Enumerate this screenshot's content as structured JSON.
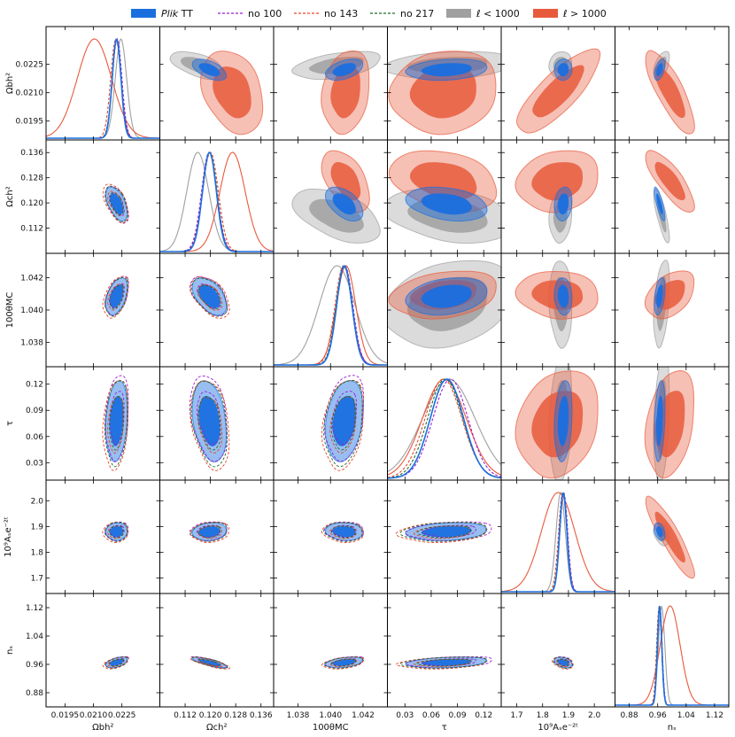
{
  "chart_data": {
    "type": "triangle-corner-plot",
    "legend": {
      "placement": "top",
      "entries": [
        {
          "key": "plik",
          "label_prefix": "Plik",
          "label_suffix": " TT",
          "style": "filled",
          "color": "#1a6fdf"
        },
        {
          "key": "no100",
          "label": "no 100",
          "style": "dashed",
          "color": "#9a1fd6"
        },
        {
          "key": "no143",
          "label": "no 143",
          "style": "dashed",
          "color": "#e8452a"
        },
        {
          "key": "no217",
          "label": "no 217",
          "style": "dashed",
          "color": "#1f6d2f"
        },
        {
          "key": "lt1000",
          "label": "ℓ < 1000",
          "style": "filled",
          "color": "#a0a0a0"
        },
        {
          "key": "gt1000",
          "label": "ℓ > 1000",
          "style": "filled",
          "color": "#e85a3c"
        }
      ]
    },
    "parameters": [
      {
        "name": "omegabh2",
        "label": "Ω_b h²",
        "xlabel": "Ωbh²",
        "range": [
          0.0185,
          0.0245
        ],
        "xticks": [
          "0.0195",
          "0.0210",
          "0.0225"
        ],
        "yticks": [
          "0.0195",
          "0.0210",
          "0.0225"
        ]
      },
      {
        "name": "omegach2",
        "label": "Ω_c h²",
        "xlabel": "Ωch²",
        "range": [
          0.104,
          0.14
        ],
        "xticks": [
          "0.112",
          "0.120",
          "0.128",
          "0.136"
        ],
        "yticks": [
          "0.112",
          "0.120",
          "0.128",
          "0.136"
        ]
      },
      {
        "name": "theta",
        "label": "100θ_MC",
        "xlabel": "100θMC",
        "range": [
          1.0365,
          1.0435
        ],
        "xticks": [
          "1.038",
          "1.040",
          "1.042"
        ],
        "yticks": [
          "1.038",
          "1.040",
          "1.042"
        ]
      },
      {
        "name": "tau",
        "label": "τ",
        "xlabel": "τ",
        "range": [
          0.01,
          0.14
        ],
        "xticks": [
          "0.03",
          "0.06",
          "0.09",
          "0.12"
        ],
        "yticks": [
          "0.03",
          "0.06",
          "0.09",
          "0.12"
        ]
      },
      {
        "name": "logA",
        "label": "10⁹Aₛe^{-2τ}",
        "xlabel": "10⁹Aₛe⁻²ᵗ",
        "range": [
          1.64,
          2.08
        ],
        "xticks": [
          "1.7",
          "1.8",
          "1.9",
          "2.0"
        ],
        "yticks": [
          "1.7",
          "1.8",
          "1.9",
          "2.0"
        ]
      },
      {
        "name": "ns",
        "label": "n_s",
        "xlabel": "nₛ",
        "range": [
          0.84,
          1.16
        ],
        "xticks": [
          "0.88",
          "0.96",
          "1.04",
          "1.12"
        ],
        "yticks": [
          "0.88",
          "0.96",
          "1.04",
          "1.12"
        ]
      }
    ],
    "ylabels": [
      "Ωbh²",
      "Ωch²",
      "100θMC",
      "τ",
      "10⁹Aₛe⁻²ᵗ",
      "nₛ"
    ],
    "cases": {
      "plik": {
        "mean": [
          0.02222,
          0.1197,
          1.04085,
          0.078,
          1.88,
          0.9655
        ],
        "sigma": [
          0.00023,
          0.0022,
          0.00047,
          0.019,
          0.014,
          0.0062
        ]
      },
      "no100": {
        "mean": [
          0.02225,
          0.1196,
          1.04088,
          0.082,
          1.882,
          0.966
        ],
        "sigma": [
          0.00025,
          0.0024,
          0.00049,
          0.02,
          0.015,
          0.0065
        ]
      },
      "no143": {
        "mean": [
          0.02218,
          0.12,
          1.0408,
          0.074,
          1.878,
          0.964
        ],
        "sigma": [
          0.00027,
          0.0025,
          0.00052,
          0.021,
          0.016,
          0.0068
        ]
      },
      "no217": {
        "mean": [
          0.02222,
          0.1198,
          1.04082,
          0.076,
          1.88,
          0.965
        ],
        "sigma": [
          0.00024,
          0.0023,
          0.00048,
          0.02,
          0.015,
          0.0063
        ]
      },
      "lt1000": {
        "mean": [
          0.02245,
          0.116,
          1.0404,
          0.08,
          1.87,
          0.971
        ],
        "sigma": [
          0.0003,
          0.0035,
          0.0011,
          0.03,
          0.018,
          0.009
        ]
      },
      "gt1000": {
        "mean": [
          0.02105,
          0.127,
          1.04095,
          0.075,
          1.86,
          0.995
        ],
        "sigma": [
          0.0009,
          0.004,
          0.0006,
          0.025,
          0.065,
          0.028
        ]
      }
    },
    "correlations": [
      [
        1.0,
        -0.55,
        0.45,
        0.2,
        0.05,
        0.5
      ],
      [
        -0.55,
        1.0,
        -0.5,
        -0.3,
        0.15,
        -0.8
      ],
      [
        0.45,
        -0.5,
        1.0,
        0.25,
        -0.1,
        0.4
      ],
      [
        0.2,
        -0.3,
        0.25,
        1.0,
        0.2,
        0.3
      ],
      [
        0.05,
        0.15,
        -0.1,
        0.2,
        1.0,
        -0.35
      ],
      [
        0.5,
        -0.8,
        0.4,
        0.3,
        -0.35,
        1.0
      ]
    ],
    "correlations_gt1000": {
      "0-4": 0.8,
      "0-5": -0.8,
      "4-5": -0.9,
      "1-0": -0.3,
      "2-0": 0.2,
      "3-0": 0.1
    },
    "upper_triangle": "plik vs lt1000 vs gt1000 (filled 68% / 95% regions)",
    "lower_triangle": "plik (filled) with no100 / no143 / no217 (dashed contours)",
    "diagonal": "1D marginalized posteriors for all six cases",
    "grid": false
  }
}
